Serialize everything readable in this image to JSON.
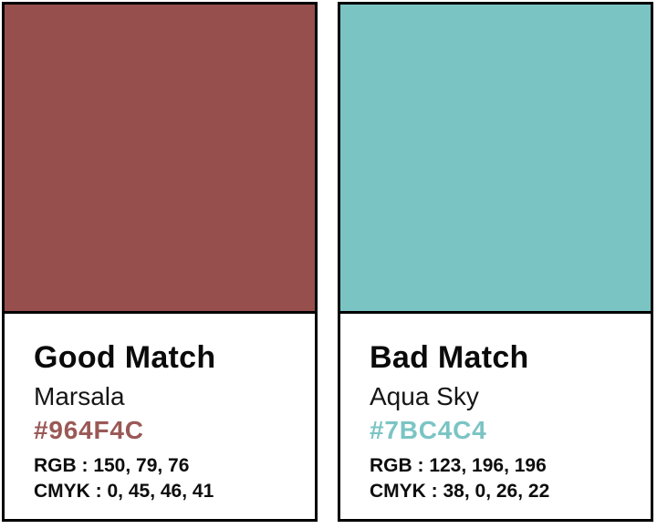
{
  "palette": {
    "card_border_color": "#000000",
    "panel_background": "#ffffff",
    "text_color": "#0d0d0d"
  },
  "cards": [
    {
      "match_label": "Good Match",
      "color_name": "Marsala",
      "hex_code": "#964F4C",
      "rgb_line": "RGB : 150, 79, 76",
      "cmyk_line": "CMYK : 0, 45, 46, 41",
      "swatch_color": "#964F4C",
      "hex_text_color": "#9A5956"
    },
    {
      "match_label": "Bad Match",
      "color_name": "Aqua Sky",
      "hex_code": "#7BC4C4",
      "rgb_line": "RGB : 123, 196, 196",
      "cmyk_line": "CMYK : 38, 0, 26, 22",
      "swatch_color": "#7BC4C4",
      "hex_text_color": "#7BC4C4"
    }
  ]
}
